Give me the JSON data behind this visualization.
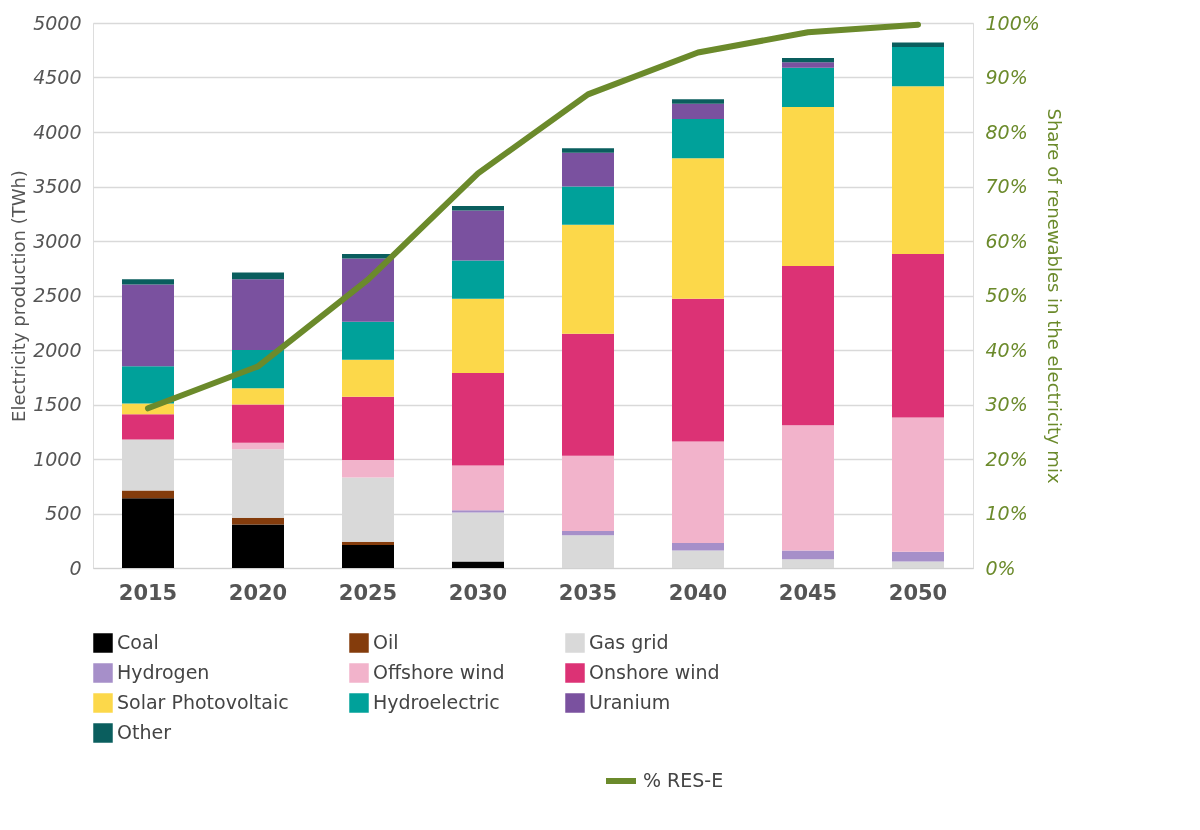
{
  "chart_data": {
    "type": "bar",
    "stacked": true,
    "categories": [
      "2015",
      "2020",
      "2025",
      "2030",
      "2035",
      "2040",
      "2045",
      "2050"
    ],
    "series": [
      {
        "name": "Coal",
        "color": "#000000",
        "values": [
          640,
          400,
          210,
          60,
          0,
          0,
          0,
          0
        ]
      },
      {
        "name": "Oil",
        "color": "#843c0c",
        "values": [
          70,
          60,
          30,
          0,
          0,
          0,
          0,
          0
        ]
      },
      {
        "name": "Gas grid",
        "color": "#d9d9d9",
        "values": [
          470,
          630,
          590,
          450,
          300,
          160,
          80,
          60
        ]
      },
      {
        "name": "Hydrogen",
        "color": "#a68fc9",
        "values": [
          0,
          0,
          0,
          20,
          40,
          70,
          80,
          90
        ]
      },
      {
        "name": "Offshore wind",
        "color": "#f2b3cb",
        "values": [
          0,
          60,
          160,
          410,
          690,
          930,
          1150,
          1230
        ]
      },
      {
        "name": "Onshore wind",
        "color": "#dc3275",
        "values": [
          230,
          350,
          580,
          850,
          1120,
          1310,
          1460,
          1500
        ]
      },
      {
        "name": "Solar Photovoltaic",
        "color": "#fcd84a",
        "values": [
          100,
          150,
          340,
          680,
          1000,
          1290,
          1460,
          1540
        ]
      },
      {
        "name": "Hydroelectric",
        "color": "#00a19a",
        "values": [
          340,
          350,
          350,
          350,
          350,
          360,
          360,
          360
        ]
      },
      {
        "name": "Uranium",
        "color": "#7a519f",
        "values": [
          750,
          650,
          580,
          460,
          310,
          140,
          50,
          0
        ]
      },
      {
        "name": "Other",
        "color": "#0a5e5e",
        "values": [
          50,
          60,
          40,
          40,
          40,
          40,
          40,
          40
        ]
      },
      {
        "name": "% RES-E",
        "type": "line",
        "axis": "y2",
        "color": "#6b8a2b",
        "values": [
          29.3,
          37,
          52.9,
          72.4,
          86.9,
          94.6,
          98.3,
          99.7
        ]
      }
    ],
    "ylabel": "Electricity production (TWh)",
    "y2label": "Share of renewables in the electricity mix",
    "ylim": [
      0,
      5000
    ],
    "yticks": [
      0,
      500,
      1000,
      1500,
      2000,
      2500,
      3000,
      3500,
      4000,
      4500,
      5000
    ],
    "y2lim": [
      0,
      100
    ],
    "y2ticks": [
      {
        "value": 0,
        "label": "0%"
      },
      {
        "value": 10,
        "label": "10%"
      },
      {
        "value": 20,
        "label": "20%"
      },
      {
        "value": 30,
        "label": "30%"
      },
      {
        "value": 40,
        "label": "40%"
      },
      {
        "value": 50,
        "label": "50%"
      },
      {
        "value": 60,
        "label": "60%"
      },
      {
        "value": 70,
        "label": "70%"
      },
      {
        "value": 80,
        "label": "80%"
      },
      {
        "value": 90,
        "label": "90%"
      },
      {
        "value": 100,
        "label": "100%"
      }
    ],
    "grid": "y",
    "legend": "bottom"
  }
}
